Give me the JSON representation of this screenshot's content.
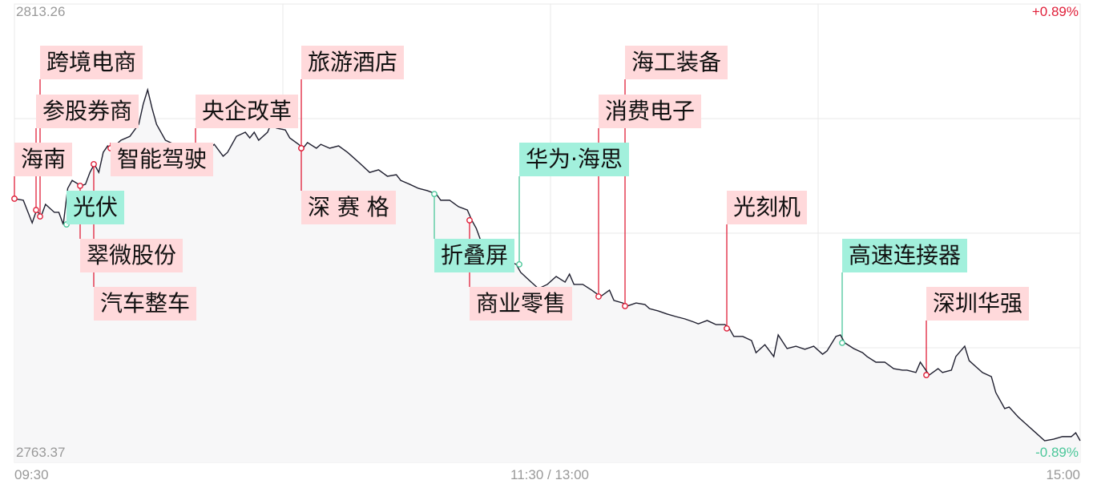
{
  "chart_data": {
    "type": "line",
    "y_max_label": "2813.26",
    "y_min_label": "2763.37",
    "pct_max_label": "+0.89%",
    "pct_min_label": "-0.89%",
    "x_tick_labels": [
      "09:30",
      "11:30 / 13:00",
      "15:00"
    ],
    "ylim_pct": [
      -0.89,
      0.89
    ],
    "grid": true,
    "colors": {
      "line": "#1e1e2e",
      "up": "#e0203a",
      "down": "#4cc79a",
      "up_tag": "#ffd9db",
      "down_tag": "#a2f0dc"
    },
    "series": [
      [
        "09:30",
        0.134
      ],
      [
        "09:32",
        0.128
      ],
      [
        "09:34",
        0.04
      ],
      [
        "09:35",
        0.09
      ],
      [
        "09:36",
        0.065
      ],
      [
        "09:37",
        0.112
      ],
      [
        "09:39",
        0.081
      ],
      [
        "09:40",
        0.081
      ],
      [
        "09:41",
        0.034
      ],
      [
        "09:42",
        0.174
      ],
      [
        "09:43",
        0.205
      ],
      [
        "09:45",
        0.184
      ],
      [
        "09:46",
        0.19
      ],
      [
        "09:47",
        0.236
      ],
      [
        "09:48",
        0.268
      ],
      [
        "09:49",
        0.236
      ],
      [
        "09:50",
        0.314
      ],
      [
        "09:51",
        0.339
      ],
      [
        "09:52",
        0.33
      ],
      [
        "09:54",
        0.361
      ],
      [
        "09:56",
        0.376
      ],
      [
        "09:58",
        0.423
      ],
      [
        "09:59",
        0.501
      ],
      [
        "10:00",
        0.557
      ],
      [
        "10:01",
        0.485
      ],
      [
        "10:02",
        0.423
      ],
      [
        "10:04",
        0.361
      ],
      [
        "10:06",
        0.345
      ],
      [
        "10:08",
        0.345
      ],
      [
        "10:09",
        0.33
      ],
      [
        "10:11",
        0.33
      ],
      [
        "10:13",
        0.314
      ],
      [
        "10:15",
        0.345
      ],
      [
        "10:17",
        0.299
      ],
      [
        "10:18",
        0.314
      ],
      [
        "10:20",
        0.376
      ],
      [
        "10:22",
        0.392
      ],
      [
        "10:23",
        0.37
      ],
      [
        "10:24",
        0.392
      ],
      [
        "10:25",
        0.361
      ],
      [
        "10:27",
        0.392
      ],
      [
        "10:28",
        0.433
      ],
      [
        "10:29",
        0.408
      ],
      [
        "10:31",
        0.401
      ],
      [
        "10:32",
        0.37
      ],
      [
        "10:34",
        0.345
      ],
      [
        "10:35",
        0.33
      ],
      [
        "10:36",
        0.352
      ],
      [
        "10:38",
        0.33
      ],
      [
        "10:39",
        0.345
      ],
      [
        "10:41",
        0.33
      ],
      [
        "10:43",
        0.339
      ],
      [
        "10:45",
        0.314
      ],
      [
        "10:46",
        0.299
      ],
      [
        "10:48",
        0.268
      ],
      [
        "10:50",
        0.236
      ],
      [
        "10:52",
        0.246
      ],
      [
        "10:54",
        0.221
      ],
      [
        "10:56",
        0.227
      ],
      [
        "10:57",
        0.205
      ],
      [
        "10:59",
        0.19
      ],
      [
        "11:01",
        0.174
      ],
      [
        "11:03",
        0.165
      ],
      [
        "11:05",
        0.152
      ],
      [
        "11:06",
        0.128
      ],
      [
        "11:08",
        0.128
      ],
      [
        "11:10",
        0.103
      ],
      [
        "11:12",
        0.09
      ],
      [
        "11:13",
        0.05
      ],
      [
        "11:14",
        0.019
      ],
      [
        "11:15",
        -0.028
      ],
      [
        "11:17",
        -0.065
      ],
      [
        "11:19",
        -0.09
      ],
      [
        "11:21",
        -0.106
      ],
      [
        "11:23",
        -0.121
      ],
      [
        "11:24",
        -0.152
      ],
      [
        "11:26",
        -0.184
      ],
      [
        "11:28",
        -0.215
      ],
      [
        "11:30",
        -0.199
      ],
      [
        "13:02",
        -0.168
      ],
      [
        "13:04",
        -0.19
      ],
      [
        "13:05",
        -0.159
      ],
      [
        "13:06",
        -0.199
      ],
      [
        "13:08",
        -0.199
      ],
      [
        "13:10",
        -0.221
      ],
      [
        "13:12",
        -0.246
      ],
      [
        "13:14",
        -0.221
      ],
      [
        "13:15",
        -0.261
      ],
      [
        "13:17",
        -0.271
      ],
      [
        "13:18",
        -0.283
      ],
      [
        "13:20",
        -0.271
      ],
      [
        "13:22",
        -0.277
      ],
      [
        "13:23",
        -0.293
      ],
      [
        "13:25",
        -0.302
      ],
      [
        "13:27",
        -0.314
      ],
      [
        "13:29",
        -0.324
      ],
      [
        "13:31",
        -0.333
      ],
      [
        "13:33",
        -0.345
      ],
      [
        "13:34",
        -0.352
      ],
      [
        "13:36",
        -0.339
      ],
      [
        "13:38",
        -0.355
      ],
      [
        "13:40",
        -0.355
      ],
      [
        "13:41",
        -0.37
      ],
      [
        "13:42",
        -0.401
      ],
      [
        "13:44",
        -0.401
      ],
      [
        "13:46",
        -0.417
      ],
      [
        "13:47",
        -0.464
      ],
      [
        "13:49",
        -0.433
      ],
      [
        "13:51",
        -0.479
      ],
      [
        "13:52",
        -0.395
      ],
      [
        "13:54",
        -0.448
      ],
      [
        "13:56",
        -0.439
      ],
      [
        "13:58",
        -0.451
      ],
      [
        "14:00",
        -0.439
      ],
      [
        "14:02",
        -0.47
      ],
      [
        "14:03",
        -0.457
      ],
      [
        "14:05",
        -0.401
      ],
      [
        "14:06",
        -0.395
      ],
      [
        "14:07",
        -0.426
      ],
      [
        "14:09",
        -0.448
      ],
      [
        "14:11",
        -0.464
      ],
      [
        "14:12",
        -0.479
      ],
      [
        "14:14",
        -0.501
      ],
      [
        "14:16",
        -0.501
      ],
      [
        "14:18",
        -0.526
      ],
      [
        "14:20",
        -0.532
      ],
      [
        "14:21",
        -0.532
      ],
      [
        "14:23",
        -0.541
      ],
      [
        "14:24",
        -0.501
      ],
      [
        "14:26",
        -0.551
      ],
      [
        "14:28",
        -0.526
      ],
      [
        "14:29",
        -0.541
      ],
      [
        "14:31",
        -0.532
      ],
      [
        "14:32",
        -0.479
      ],
      [
        "14:34",
        -0.439
      ],
      [
        "14:35",
        -0.495
      ],
      [
        "14:37",
        -0.526
      ],
      [
        "14:38",
        -0.541
      ],
      [
        "14:40",
        -0.557
      ],
      [
        "14:41",
        -0.619
      ],
      [
        "14:43",
        -0.681
      ],
      [
        "14:44",
        -0.675
      ],
      [
        "14:46",
        -0.713
      ],
      [
        "14:48",
        -0.744
      ],
      [
        "14:50",
        -0.775
      ],
      [
        "14:52",
        -0.806
      ],
      [
        "14:54",
        -0.8
      ],
      [
        "14:56",
        -0.79
      ],
      [
        "14:58",
        -0.79
      ],
      [
        "14:59",
        -0.775
      ],
      [
        "15:00",
        -0.806
      ]
    ],
    "annotations": [
      {
        "label": "海南",
        "time": "09:30",
        "dir": "up"
      },
      {
        "label": "参股券商",
        "time": "09:35",
        "dir": "up"
      },
      {
        "label": "跨境电商",
        "time": "09:36",
        "dir": "up"
      },
      {
        "label": "光伏",
        "time": "09:41",
        "dir": "down"
      },
      {
        "label": "翠微股份",
        "time": "09:45",
        "dir": "up"
      },
      {
        "label": "汽车整车",
        "time": "09:48",
        "dir": "up"
      },
      {
        "label": "智能驾驶",
        "time": "09:52",
        "dir": "up"
      },
      {
        "label": "央企改革",
        "time": "10:11",
        "dir": "up"
      },
      {
        "label": "旅游酒店",
        "time": "10:35",
        "dir": "up"
      },
      {
        "label": "深 赛 格",
        "time": "10:35",
        "dir": "up"
      },
      {
        "label": "折叠屏",
        "time": "11:05",
        "dir": "down"
      },
      {
        "label": "华为·海思",
        "time": "11:23",
        "dir": "down"
      },
      {
        "label": "商业零售",
        "time": "11:13",
        "dir": "up"
      },
      {
        "label": "海工装备",
        "time": "13:18",
        "dir": "up"
      },
      {
        "label": "消费电子",
        "time": "13:12",
        "dir": "up"
      },
      {
        "label": "光刻机",
        "time": "13:41",
        "dir": "up"
      },
      {
        "label": "高速连接器",
        "time": "14:07",
        "dir": "down"
      },
      {
        "label": "深圳华强",
        "time": "14:26",
        "dir": "up"
      }
    ]
  }
}
